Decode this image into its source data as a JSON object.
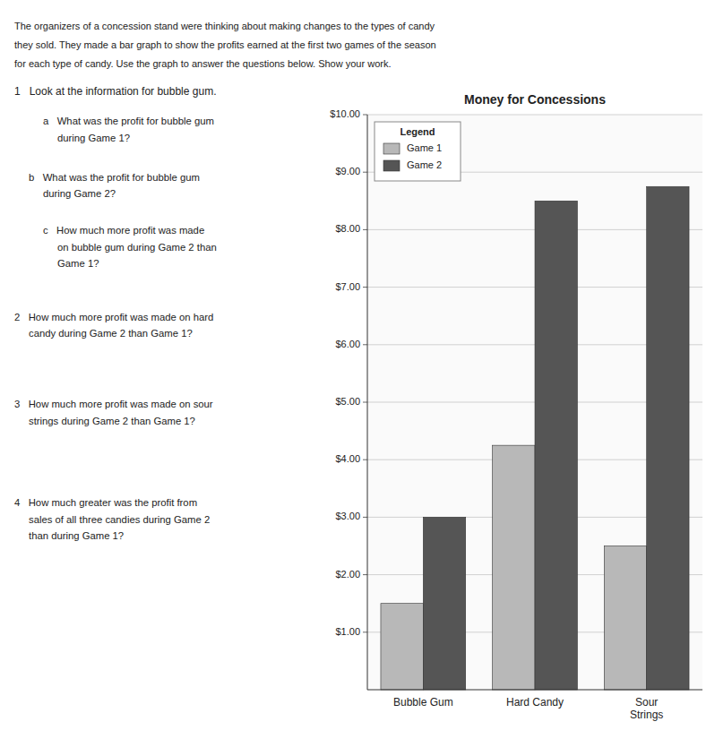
{
  "page_text": [
    "The organizers of a concession stand were thinking about making changes to the types of candy",
    "they sold. They made a bar graph to show the profits earned at the first two games of the season",
    "for each type of candy. Use the graph to answer the questions below. Show your work.",
    "1   Look at the information for bubble gum.",
    "a   What was the profit for bubble gum",
    "during Game 1?",
    "b   What was the profit for bubble gum",
    "during Game 2?",
    "c   How much more profit was made",
    "on bubble gum during Game 2 than",
    "Game 1?",
    "2   How much more profit was made on hard",
    "candy during Game 2 than Game 1?",
    "3   How much more profit was made on sour",
    "strings during Game 2 than Game 1?",
    "4   How much greater was the profit from",
    "sales of all three candies during Game 2",
    "than during Game 1?"
  ],
  "chart_data": {
    "type": "bar",
    "title": "Money for Concessions",
    "categories": [
      "Bubble Gum",
      "Hard Candy",
      "Sour\nStrings"
    ],
    "series": [
      {
        "name": "Game 1",
        "color": "#b8b8b8",
        "values": [
          1.5,
          4.25,
          2.5
        ]
      },
      {
        "name": "Game 2",
        "color": "#555555",
        "values": [
          3.0,
          8.5,
          8.75
        ]
      }
    ],
    "ylim": [
      0,
      10.0
    ],
    "yticks": [
      {
        "value": 1.0,
        "label": "$1.00"
      },
      {
        "value": 2.0,
        "label": "$2.00"
      },
      {
        "value": 3.0,
        "label": "$3.00"
      },
      {
        "value": 4.0,
        "label": "$4.00"
      },
      {
        "value": 5.0,
        "label": "$5.00"
      },
      {
        "value": 6.0,
        "label": "$6.00"
      },
      {
        "value": 7.0,
        "label": "$7.00"
      },
      {
        "value": 8.0,
        "label": "$8.00"
      },
      {
        "value": 9.0,
        "label": "$9.00"
      },
      {
        "value": 10.0,
        "label": "$10.00"
      }
    ],
    "grid": true,
    "legend": "upper left",
    "legend_title": "Legend"
  }
}
